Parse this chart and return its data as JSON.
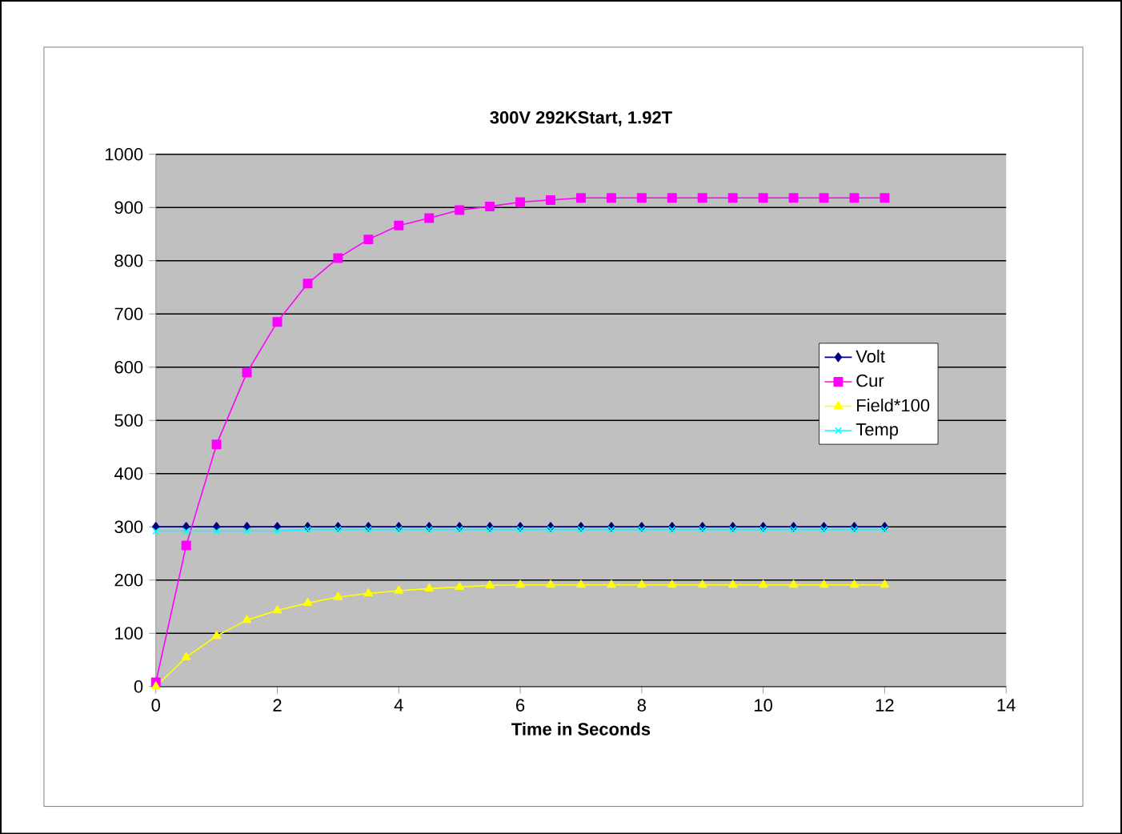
{
  "chart_data": {
    "type": "line",
    "title": "300V 292KStart, 1.92T",
    "xlabel": "Time in Seconds",
    "x": [
      0,
      0.5,
      1,
      1.5,
      2,
      2.5,
      3,
      3.5,
      4,
      4.5,
      5,
      5.5,
      6,
      6.5,
      7,
      7.5,
      8,
      8.5,
      9,
      9.5,
      10,
      10.5,
      11,
      11.5,
      12
    ],
    "series": [
      {
        "name": "Volt",
        "color": "#000080",
        "marker": "diamond",
        "values": [
          300,
          300,
          300,
          300,
          300,
          300,
          300,
          300,
          300,
          300,
          300,
          300,
          300,
          300,
          300,
          300,
          300,
          300,
          300,
          300,
          300,
          300,
          300,
          300,
          300
        ]
      },
      {
        "name": "Cur",
        "color": "#ff00ff",
        "marker": "square",
        "values": [
          8,
          265,
          455,
          590,
          685,
          757,
          805,
          840,
          866,
          880,
          895,
          902,
          910,
          914,
          918,
          918,
          918,
          918,
          918,
          918,
          918,
          918,
          918,
          918,
          918
        ]
      },
      {
        "name": "Field*100",
        "color": "#ffff00",
        "marker": "triangle",
        "values": [
          0,
          55,
          95,
          125,
          143,
          157,
          168,
          175,
          180,
          184,
          187,
          190,
          191,
          191,
          191,
          191,
          191,
          191,
          191,
          191,
          191,
          191,
          191,
          191,
          191
        ]
      },
      {
        "name": "Temp",
        "color": "#00ffff",
        "marker": "cross",
        "values": [
          292,
          292,
          292,
          292,
          292,
          295,
          295,
          295,
          295,
          295,
          295,
          295,
          295,
          295,
          295,
          295,
          295,
          295,
          295,
          295,
          295,
          295,
          295,
          295,
          295
        ]
      }
    ],
    "xlim": [
      0,
      14
    ],
    "xticks": [
      0,
      2,
      4,
      6,
      8,
      10,
      12,
      14
    ],
    "ylim": [
      0,
      1000
    ],
    "yticks": [
      0,
      100,
      200,
      300,
      400,
      500,
      600,
      700,
      800,
      900,
      1000
    ],
    "grid": "y",
    "legend": "right",
    "line_style": "solid"
  }
}
